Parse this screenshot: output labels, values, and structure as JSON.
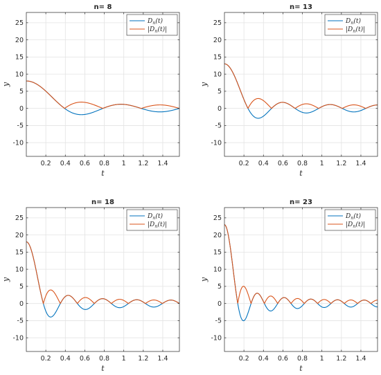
{
  "chart_data": [
    {
      "type": "line",
      "title": "n= 8",
      "n": 8,
      "xlabel": "t",
      "ylabel": "y",
      "xlim": [
        0,
        1.5708
      ],
      "ylim": [
        -14,
        28
      ],
      "xticks": [
        0.2,
        0.4,
        0.6,
        0.8,
        1,
        1.2,
        1.4
      ],
      "xtick_labels": [
        "0.2",
        "0.4",
        "0.6",
        "0.8",
        "1",
        "1.2",
        "1.4"
      ],
      "yticks": [
        -10,
        -5,
        0,
        5,
        10,
        15,
        20,
        25
      ],
      "ytick_labels": [
        "-10",
        "-5",
        "0",
        "5",
        "10",
        "15",
        "20",
        "25"
      ],
      "grid": true,
      "legend": "top-right",
      "series": [
        {
          "name": "D_n(t)",
          "label_parts": {
            "pre": "",
            "main": "D",
            "sub": "n",
            "post": "(t)"
          },
          "color": "#0072BD",
          "formula": "sin(n t)/sin(t)"
        },
        {
          "name": "|D_n(t)|",
          "label_parts": {
            "pre": "|",
            "main": "D",
            "sub": "n",
            "post": "(t)|"
          },
          "color": "#D95319",
          "formula": "abs(sin(n t)/sin(t))"
        }
      ]
    },
    {
      "type": "line",
      "title": "n= 13",
      "n": 13,
      "xlabel": "t",
      "ylabel": "y",
      "xlim": [
        0,
        1.5708
      ],
      "ylim": [
        -14,
        28
      ],
      "xticks": [
        0.2,
        0.4,
        0.6,
        0.8,
        1,
        1.2,
        1.4
      ],
      "xtick_labels": [
        "0.2",
        "0.4",
        "0.6",
        "0.8",
        "1",
        "1.2",
        "1.4"
      ],
      "yticks": [
        -10,
        -5,
        0,
        5,
        10,
        15,
        20,
        25
      ],
      "ytick_labels": [
        "-10",
        "-5",
        "0",
        "5",
        "10",
        "15",
        "20",
        "25"
      ],
      "grid": true,
      "legend": "top-right",
      "series": [
        {
          "name": "D_n(t)",
          "label_parts": {
            "pre": "",
            "main": "D",
            "sub": "n",
            "post": "(t)"
          },
          "color": "#0072BD",
          "formula": "sin(n t)/sin(t)"
        },
        {
          "name": "|D_n(t)|",
          "label_parts": {
            "pre": "|",
            "main": "D",
            "sub": "n",
            "post": "(t)|"
          },
          "color": "#D95319",
          "formula": "abs(sin(n t)/sin(t))"
        }
      ]
    },
    {
      "type": "line",
      "title": "n= 18",
      "n": 18,
      "xlabel": "t",
      "ylabel": "y",
      "xlim": [
        0,
        1.5708
      ],
      "ylim": [
        -14,
        28
      ],
      "xticks": [
        0.2,
        0.4,
        0.6,
        0.8,
        1,
        1.2,
        1.4
      ],
      "xtick_labels": [
        "0.2",
        "0.4",
        "0.6",
        "0.8",
        "1",
        "1.2",
        "1.4"
      ],
      "yticks": [
        -10,
        -5,
        0,
        5,
        10,
        15,
        20,
        25
      ],
      "ytick_labels": [
        "-10",
        "-5",
        "0",
        "5",
        "10",
        "15",
        "20",
        "25"
      ],
      "grid": true,
      "legend": "top-right",
      "series": [
        {
          "name": "D_n(t)",
          "label_parts": {
            "pre": "",
            "main": "D",
            "sub": "n",
            "post": "(t)"
          },
          "color": "#0072BD",
          "formula": "sin(n t)/sin(t)"
        },
        {
          "name": "|D_n(t)|",
          "label_parts": {
            "pre": "|",
            "main": "D",
            "sub": "n",
            "post": "(t)|"
          },
          "color": "#D95319",
          "formula": "abs(sin(n t)/sin(t))"
        }
      ]
    },
    {
      "type": "line",
      "title": "n= 23",
      "n": 23,
      "xlabel": "t",
      "ylabel": "y",
      "xlim": [
        0,
        1.5708
      ],
      "ylim": [
        -14,
        28
      ],
      "xticks": [
        0.2,
        0.4,
        0.6,
        0.8,
        1,
        1.2,
        1.4
      ],
      "xtick_labels": [
        "0.2",
        "0.4",
        "0.6",
        "0.8",
        "1",
        "1.2",
        "1.4"
      ],
      "yticks": [
        -10,
        -5,
        0,
        5,
        10,
        15,
        20,
        25
      ],
      "ytick_labels": [
        "-10",
        "-5",
        "0",
        "5",
        "10",
        "15",
        "20",
        "25"
      ],
      "grid": true,
      "legend": "top-right",
      "series": [
        {
          "name": "D_n(t)",
          "label_parts": {
            "pre": "",
            "main": "D",
            "sub": "n",
            "post": "(t)"
          },
          "color": "#0072BD",
          "formula": "sin(n t)/sin(t)"
        },
        {
          "name": "|D_n(t)|",
          "label_parts": {
            "pre": "|",
            "main": "D",
            "sub": "n",
            "post": "(t)|"
          },
          "color": "#D95319",
          "formula": "abs(sin(n t)/sin(t))"
        }
      ]
    }
  ]
}
